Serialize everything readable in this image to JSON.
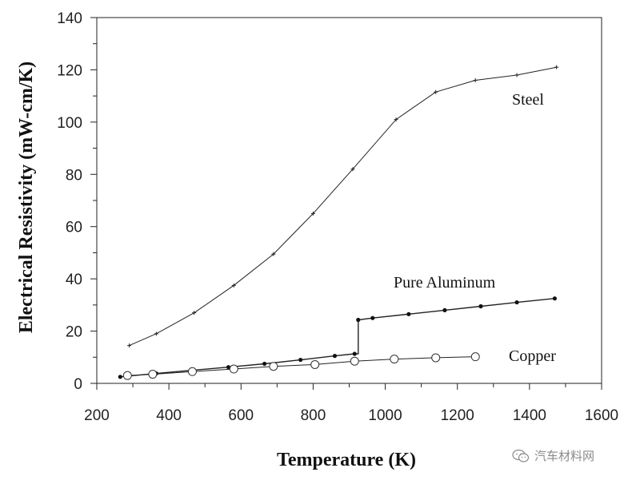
{
  "chart_data": {
    "type": "line",
    "title": "",
    "xlabel": "Temperature (K)",
    "ylabel": "Electrical Resistivity (mW-cm/K)",
    "xlim": [
      200,
      1600
    ],
    "ylim": [
      0,
      140
    ],
    "x_ticks": [
      200,
      400,
      600,
      800,
      1000,
      1200,
      1400,
      1600
    ],
    "y_ticks": [
      0,
      20,
      40,
      60,
      80,
      100,
      120,
      140
    ],
    "grid": false,
    "legend": "none (series labelled directly on plot)",
    "series": [
      {
        "name": "Steel",
        "marker": "plus",
        "x": [
          290,
          365,
          470,
          580,
          690,
          800,
          910,
          1030,
          1140,
          1250,
          1365,
          1475
        ],
        "y": [
          14.5,
          19,
          27,
          37.5,
          49.5,
          65,
          82,
          101,
          111.5,
          116,
          118,
          121
        ]
      },
      {
        "name": "Pure Aluminum",
        "marker": "filled-dot",
        "x": [
          265,
          365,
          465,
          565,
          665,
          765,
          860,
          915,
          925,
          925,
          965,
          1065,
          1165,
          1265,
          1365,
          1470
        ],
        "y": [
          2.5,
          3.8,
          5,
          6.2,
          7.5,
          9,
          10.5,
          11.3,
          11.3,
          24.3,
          25,
          26.5,
          28,
          29.5,
          31,
          32.5
        ]
      },
      {
        "name": "Copper",
        "marker": "open-circle",
        "x": [
          285,
          355,
          465,
          580,
          690,
          805,
          915,
          1025,
          1140,
          1250
        ],
        "y": [
          3,
          3.5,
          4.5,
          5.5,
          6.5,
          7.2,
          8.5,
          9.3,
          9.8,
          10.2
        ]
      }
    ]
  },
  "watermark": {
    "text": "汽车材料网",
    "icon": "wechat-logo-icon"
  }
}
